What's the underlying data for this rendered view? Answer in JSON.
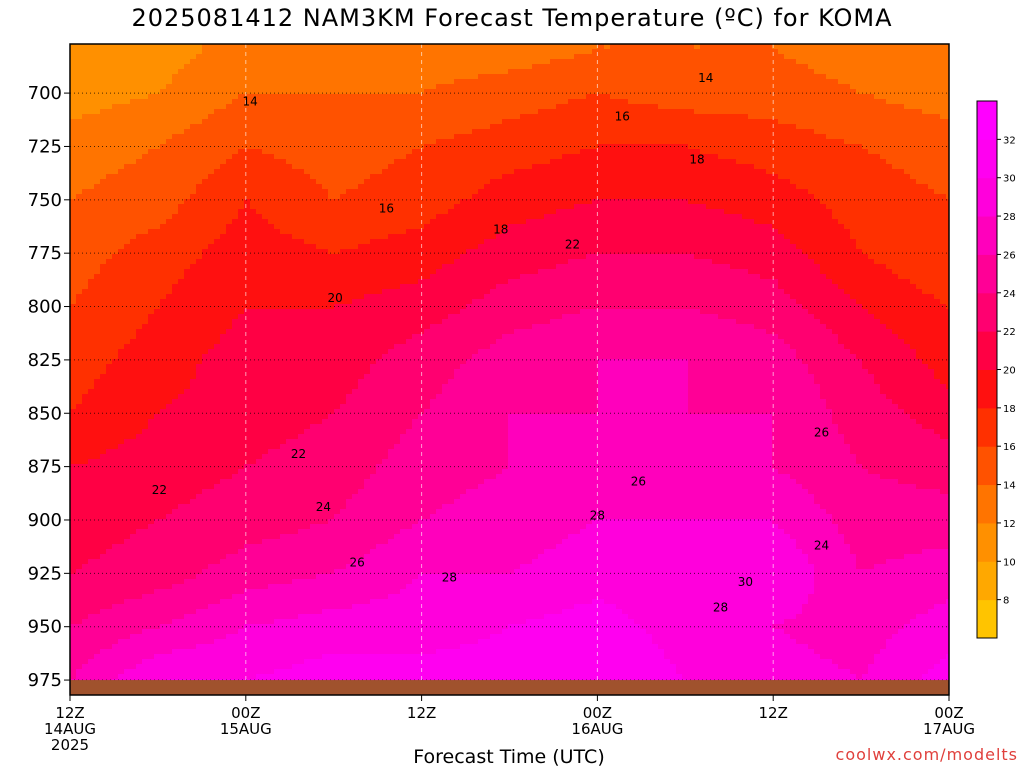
{
  "title": "2025081412 NAM3KM Forecast Temperature (ºC) for KOMA",
  "xaxis_title": "Forecast Time (UTC)",
  "credit": "coolwx.com/modelts",
  "chart_data": {
    "type": "heatmap",
    "title": "2025081412 NAM3KM Forecast Temperature (ºC) for KOMA",
    "xlabel": "Forecast Time (UTC)",
    "ylabel": "",
    "y_ticks": [
      700,
      725,
      750,
      775,
      800,
      825,
      850,
      875,
      900,
      925,
      950,
      975
    ],
    "y_range": [
      677,
      982
    ],
    "x_ticks": [
      {
        "hour": 0,
        "lines": [
          "12Z",
          "14AUG",
          "2025"
        ]
      },
      {
        "hour": 12,
        "lines": [
          "00Z",
          "15AUG"
        ]
      },
      {
        "hour": 24,
        "lines": [
          "12Z"
        ]
      },
      {
        "hour": 36,
        "lines": [
          "00Z",
          "16AUG"
        ]
      },
      {
        "hour": 48,
        "lines": [
          "12Z"
        ]
      },
      {
        "hour": 60,
        "lines": [
          "00Z",
          "17AUG"
        ]
      }
    ],
    "x_range": [
      0,
      60
    ],
    "grid": true,
    "colorbar": {
      "levels": [
        8,
        10,
        12,
        14,
        16,
        18,
        20,
        22,
        24,
        26,
        28,
        30,
        32
      ],
      "colors": [
        "#ffc400",
        "#ffa800",
        "#ff9000",
        "#ff7400",
        "#ff5200",
        "#ff3000",
        "#ff1010",
        "#ff0044",
        "#ff0070",
        "#ff0096",
        "#ff00bc",
        "#ff00dc",
        "#ff00f0",
        "#ff00ff"
      ]
    },
    "contour_labels": [
      {
        "value": "14",
        "hour": 12.3,
        "p": 704
      },
      {
        "value": "14",
        "hour": 43.4,
        "p": 693
      },
      {
        "value": "16",
        "hour": 37.7,
        "p": 711
      },
      {
        "value": "16",
        "hour": 21.6,
        "p": 754
      },
      {
        "value": "18",
        "hour": 42.8,
        "p": 731
      },
      {
        "value": "18",
        "hour": 29.4,
        "p": 764
      },
      {
        "value": "20",
        "hour": 18.1,
        "p": 796
      },
      {
        "value": "22",
        "hour": 34.3,
        "p": 771
      },
      {
        "value": "22",
        "hour": 6.1,
        "p": 886
      },
      {
        "value": "22",
        "hour": 15.6,
        "p": 869
      },
      {
        "value": "24",
        "hour": 17.3,
        "p": 894
      },
      {
        "value": "24",
        "hour": 51.3,
        "p": 912
      },
      {
        "value": "26",
        "hour": 19.6,
        "p": 920
      },
      {
        "value": "26",
        "hour": 38.8,
        "p": 882
      },
      {
        "value": "26",
        "hour": 51.3,
        "p": 859
      },
      {
        "value": "28",
        "hour": 25.9,
        "p": 927
      },
      {
        "value": "28",
        "hour": 36.0,
        "p": 898
      },
      {
        "value": "28",
        "hour": 44.4,
        "p": 941
      },
      {
        "value": "30",
        "hour": 46.1,
        "p": 929
      }
    ],
    "ground_pressure": 975,
    "values_grid": {
      "hours": [
        0,
        6,
        12,
        18,
        24,
        30,
        36,
        42,
        48,
        54,
        60
      ],
      "pressures": [
        680,
        700,
        725,
        750,
        775,
        800,
        825,
        850,
        875,
        900,
        925,
        950,
        975
      ],
      "temps": [
        [
          10,
          11,
          13,
          12,
          13,
          13,
          14,
          14,
          14,
          13,
          12
        ],
        [
          11,
          12,
          14,
          14,
          14,
          15,
          16,
          15,
          15,
          14,
          13
        ],
        [
          13,
          14,
          16,
          15,
          16,
          17,
          18,
          18,
          17,
          16,
          15
        ],
        [
          14,
          15,
          18,
          16,
          17,
          19,
          20,
          20,
          19,
          17,
          16
        ],
        [
          15,
          17,
          19,
          18,
          19,
          21,
          22,
          22,
          21,
          18,
          16
        ],
        [
          16,
          18,
          20,
          20,
          21,
          23,
          24,
          24,
          23,
          20,
          18
        ],
        [
          17,
          19,
          21,
          21,
          23,
          25,
          26,
          26,
          25,
          22,
          19
        ],
        [
          18,
          20,
          21,
          22,
          24,
          26,
          26,
          26,
          26,
          23,
          21
        ],
        [
          20,
          21,
          22,
          23,
          25,
          26,
          26,
          26,
          26,
          24,
          23
        ],
        [
          21,
          22,
          23,
          24,
          26,
          27,
          28,
          28,
          28,
          25,
          25
        ],
        [
          22,
          23,
          25,
          26,
          28,
          28,
          29,
          29,
          30,
          26,
          27
        ],
        [
          24,
          26,
          28,
          29,
          29,
          30,
          31,
          29,
          28,
          27,
          29
        ],
        [
          26,
          30,
          30,
          31,
          31,
          31,
          32,
          30,
          29,
          28,
          31
        ]
      ]
    }
  }
}
